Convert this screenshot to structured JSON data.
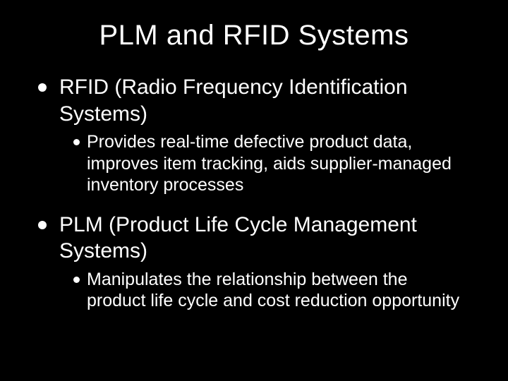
{
  "background_color": "#000000",
  "text_color": "#ffffff",
  "bullet_color": "#ffffff",
  "title": "PLM and RFID Systems",
  "title_fontsize": 40,
  "level1_fontsize": 30,
  "level2_fontsize": 25,
  "items": [
    {
      "text": "RFID (Radio Frequency Identification Systems)",
      "sub": "Provides real-time defective product data, improves item tracking, aids supplier-managed inventory processes"
    },
    {
      "text": "PLM (Product Life Cycle Management Systems)",
      "sub": "Manipulates the relationship between the product life cycle and cost reduction opportunity"
    }
  ]
}
